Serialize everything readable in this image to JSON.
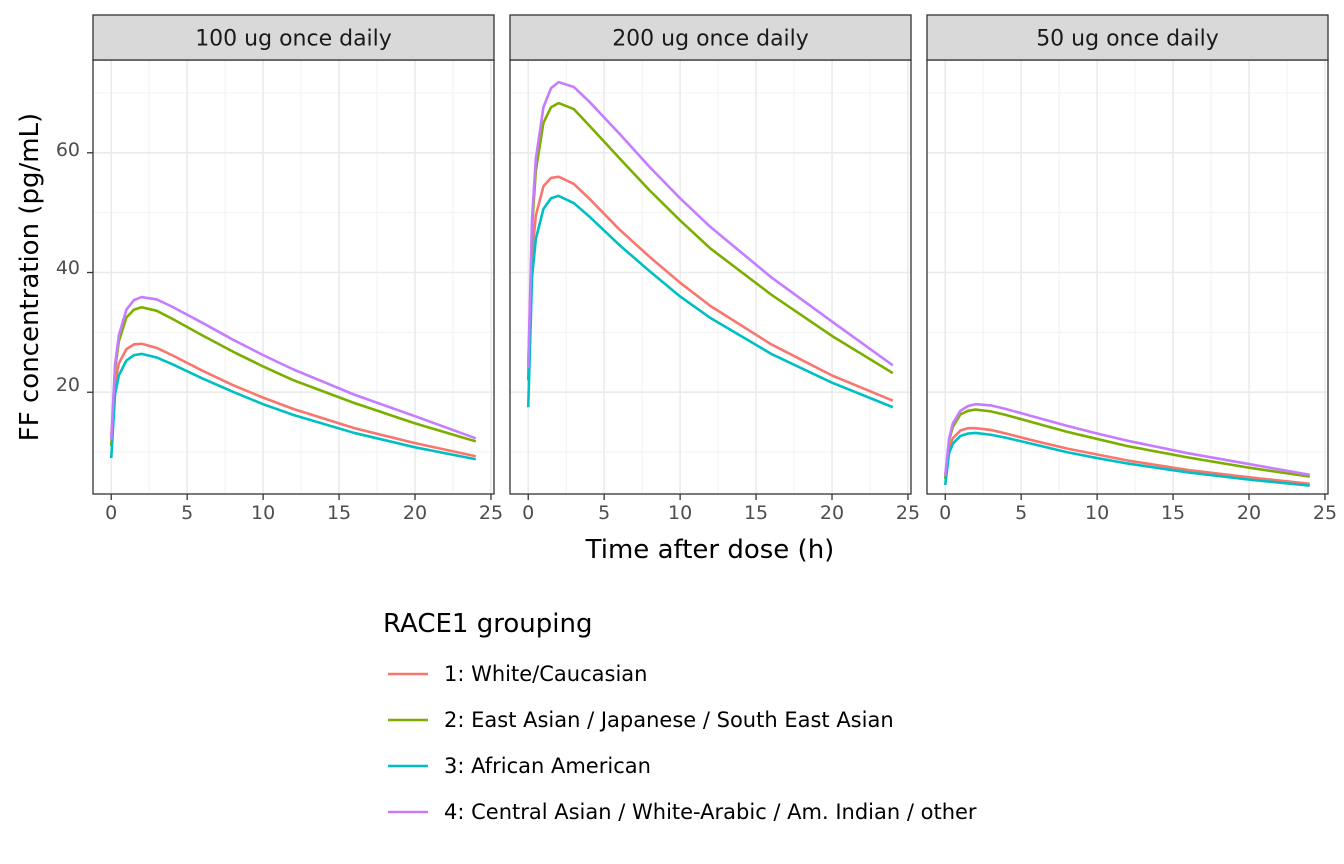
{
  "chart_data": {
    "type": "line",
    "facets": [
      "100 ug once daily",
      "200 ug once daily",
      "50 ug once daily"
    ],
    "xlabel": "Time after dose (h)",
    "ylabel": "FF concentration (pg/mL)",
    "xlim": [
      -1.2,
      25.2
    ],
    "ylim": [
      3.0,
      75.5
    ],
    "x_ticks": [
      0,
      5,
      10,
      15,
      20,
      25
    ],
    "x_tick_labels": [
      "0",
      "5",
      "10",
      "15",
      "20",
      "25"
    ],
    "y_ticks": [
      20,
      40,
      60
    ],
    "y_tick_labels": [
      "20",
      "40",
      "60"
    ],
    "grid": true,
    "legend": {
      "title": "RACE1 grouping",
      "position": "bottom",
      "entries": [
        "1: White/Caucasian",
        "2: East Asian / Japanese / South East Asian",
        "3: African American",
        "4: Central Asian / White-Arabic / Am. Indian / other"
      ]
    },
    "series_colors": [
      "#F8766D",
      "#7CAE00",
      "#00BFC4",
      "#C77CFF"
    ],
    "panels": [
      {
        "facet": "100 ug once daily",
        "series": [
          {
            "legend_index": 0,
            "x": [
              0,
              0.25,
              0.5,
              1,
              1.5,
              2,
              3,
              4,
              6,
              8,
              10,
              12,
              16,
              20,
              24
            ],
            "y": [
              12.3,
              21.5,
              24.8,
              27.2,
              28.0,
              28.1,
              27.4,
              26.2,
              23.6,
              21.2,
              19.1,
              17.2,
              14.0,
              11.5,
              9.3
            ]
          },
          {
            "legend_index": 1,
            "x": [
              0,
              0.25,
              0.5,
              1,
              1.5,
              2,
              3,
              4,
              6,
              8,
              10,
              12,
              16,
              20,
              24
            ],
            "y": [
              11.0,
              23.8,
              28.5,
              32.5,
              33.8,
              34.2,
              33.6,
              32.3,
              29.5,
              26.8,
              24.3,
              22.0,
              18.2,
              14.8,
              11.8
            ]
          },
          {
            "legend_index": 2,
            "x": [
              0,
              0.25,
              0.5,
              1,
              1.5,
              2,
              3,
              4,
              6,
              8,
              10,
              12,
              16,
              20,
              24
            ],
            "y": [
              9.0,
              19.6,
              22.8,
              25.3,
              26.2,
              26.4,
              25.8,
              24.7,
              22.3,
              20.1,
              18.0,
              16.2,
              13.2,
              10.8,
              8.8
            ]
          },
          {
            "legend_index": 3,
            "x": [
              0,
              0.25,
              0.5,
              1,
              1.5,
              2,
              3,
              4,
              6,
              8,
              10,
              12,
              16,
              20,
              24
            ],
            "y": [
              12.0,
              24.5,
              29.5,
              33.8,
              35.4,
              35.9,
              35.5,
              34.3,
              31.6,
              28.8,
              26.2,
              23.8,
              19.6,
              16.0,
              12.3
            ]
          }
        ]
      },
      {
        "facet": "200 ug once daily",
        "series": [
          {
            "legend_index": 0,
            "x": [
              0,
              0.25,
              0.5,
              1,
              1.5,
              2,
              3,
              4,
              6,
              8,
              10,
              12,
              16,
              20,
              24
            ],
            "y": [
              24.5,
              43.0,
              49.5,
              54.4,
              55.8,
              56.0,
              54.8,
              52.4,
              47.2,
              42.6,
              38.3,
              34.4,
              28.0,
              22.8,
              18.6
            ]
          },
          {
            "legend_index": 1,
            "x": [
              0,
              0.25,
              0.5,
              1,
              1.5,
              2,
              3,
              4,
              6,
              8,
              10,
              12,
              16,
              20,
              24
            ],
            "y": [
              22.0,
              47.5,
              57.0,
              65.0,
              67.6,
              68.3,
              67.3,
              64.6,
              59.1,
              53.7,
              48.7,
              44.0,
              36.3,
              29.4,
              23.2
            ]
          },
          {
            "legend_index": 2,
            "x": [
              0,
              0.25,
              0.5,
              1,
              1.5,
              2,
              3,
              4,
              6,
              8,
              10,
              12,
              16,
              20,
              24
            ],
            "y": [
              17.5,
              39.2,
              45.6,
              50.6,
              52.4,
              52.8,
              51.6,
              49.4,
              44.6,
              40.2,
              36.0,
              32.4,
              26.4,
              21.6,
              17.5
            ]
          },
          {
            "legend_index": 3,
            "x": [
              0,
              0.25,
              0.5,
              1,
              1.5,
              2,
              3,
              4,
              6,
              8,
              10,
              12,
              16,
              20,
              24
            ],
            "y": [
              24.0,
              49.0,
              59.0,
              67.6,
              70.8,
              71.8,
              71.0,
              68.6,
              63.2,
              57.6,
              52.4,
              47.6,
              39.2,
              31.8,
              24.5
            ]
          }
        ]
      },
      {
        "facet": "50 ug once daily",
        "series": [
          {
            "legend_index": 0,
            "x": [
              0,
              0.25,
              0.5,
              1,
              1.5,
              2,
              3,
              4,
              6,
              8,
              10,
              12,
              16,
              20,
              24
            ],
            "y": [
              6.2,
              10.7,
              12.3,
              13.6,
              14.0,
              14.0,
              13.7,
              13.1,
              11.8,
              10.6,
              9.6,
              8.6,
              7.0,
              5.8,
              4.7
            ]
          },
          {
            "legend_index": 1,
            "x": [
              0,
              0.25,
              0.5,
              1,
              1.5,
              2,
              3,
              4,
              6,
              8,
              10,
              12,
              16,
              20,
              24
            ],
            "y": [
              5.5,
              11.9,
              14.2,
              16.3,
              16.9,
              17.1,
              16.8,
              16.2,
              14.8,
              13.4,
              12.2,
              11.0,
              9.1,
              7.4,
              5.9
            ]
          },
          {
            "legend_index": 2,
            "x": [
              0,
              0.25,
              0.5,
              1,
              1.5,
              2,
              3,
              4,
              6,
              8,
              10,
              12,
              16,
              20,
              24
            ],
            "y": [
              4.5,
              9.8,
              11.4,
              12.7,
              13.1,
              13.2,
              12.9,
              12.4,
              11.2,
              10.0,
              9.0,
              8.1,
              6.6,
              5.4,
              4.4
            ]
          },
          {
            "legend_index": 3,
            "x": [
              0,
              0.25,
              0.5,
              1,
              1.5,
              2,
              3,
              4,
              6,
              8,
              10,
              12,
              16,
              20,
              24
            ],
            "y": [
              6.0,
              12.2,
              14.8,
              16.9,
              17.7,
              18.0,
              17.8,
              17.2,
              15.8,
              14.4,
              13.1,
              11.9,
              9.8,
              8.0,
              6.2
            ]
          }
        ]
      }
    ]
  }
}
